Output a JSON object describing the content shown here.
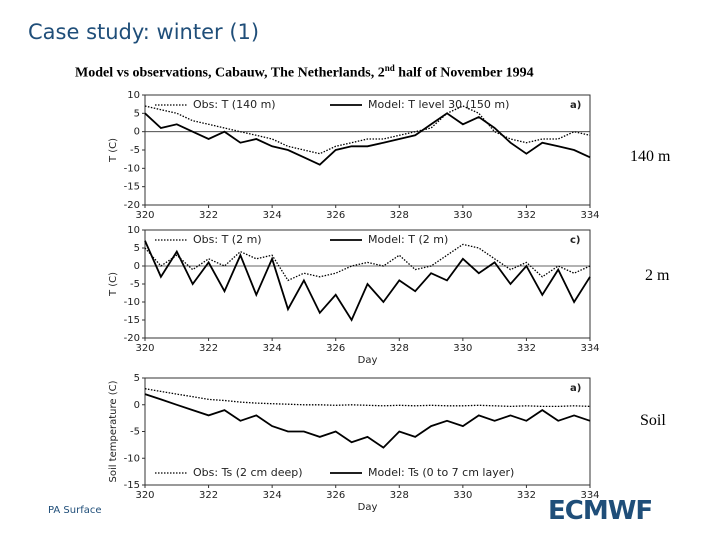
{
  "slide": {
    "title": "Case study: winter (1)",
    "subtitle_parts": [
      "Model vs observations, Cabauw, The Netherlands, 2",
      "nd",
      " half of November 1994"
    ],
    "level_labels": [
      "140 m",
      "2 m",
      "Soil"
    ],
    "footer": "PA Surface",
    "logo": "ECMWF"
  },
  "chart_data": [
    {
      "type": "line",
      "panel_label": "a)",
      "ylabel": "T (C)",
      "legend": "top",
      "zero_line": true,
      "xlim": [
        320,
        334
      ],
      "xticks": [
        320,
        322,
        324,
        326,
        328,
        330,
        332,
        334
      ],
      "ylim": [
        -20,
        10
      ],
      "yticks": [
        -20,
        -15,
        -10,
        -5,
        0,
        5,
        10
      ],
      "x": [
        320,
        320.5,
        321,
        321.5,
        322,
        322.5,
        323,
        323.5,
        324,
        324.5,
        325,
        325.5,
        326,
        326.5,
        327,
        327.5,
        328,
        328.5,
        329,
        329.5,
        330,
        330.5,
        331,
        331.5,
        332,
        332.5,
        333,
        333.5,
        334
      ],
      "series": [
        {
          "name": "Obs: T (140 m)",
          "color": "#000000",
          "linestyle": "dotted",
          "values": [
            7,
            6,
            5,
            3,
            2,
            1,
            0,
            -1,
            -2,
            -4,
            -5,
            -6,
            -4,
            -3,
            -2,
            -2,
            -1,
            0,
            1,
            5,
            7,
            5,
            0,
            -2,
            -3,
            -2,
            -2,
            0,
            -1
          ]
        },
        {
          "name": "Model: T level 30 (150 m)",
          "color": "#000000",
          "linestyle": "solid",
          "values": [
            5,
            1,
            2,
            0,
            -2,
            0,
            -3,
            -2,
            -4,
            -5,
            -7,
            -9,
            -5,
            -4,
            -4,
            -3,
            -2,
            -1,
            2,
            5,
            2,
            4,
            1,
            -3,
            -6,
            -3,
            -4,
            -5,
            -7
          ]
        }
      ]
    },
    {
      "type": "line",
      "panel_label": "c)",
      "ylabel": "T (C)",
      "xlabel": "Day",
      "legend": "top",
      "zero_line": true,
      "xlim": [
        320,
        334
      ],
      "xticks": [
        320,
        322,
        324,
        326,
        328,
        330,
        332,
        334
      ],
      "ylim": [
        -20,
        10
      ],
      "yticks": [
        -20,
        -15,
        -10,
        -5,
        0,
        5,
        10
      ],
      "x": [
        320,
        320.5,
        321,
        321.5,
        322,
        322.5,
        323,
        323.5,
        324,
        324.5,
        325,
        325.5,
        326,
        326.5,
        327,
        327.5,
        328,
        328.5,
        329,
        329.5,
        330,
        330.5,
        331,
        331.5,
        332,
        332.5,
        333,
        333.5,
        334
      ],
      "series": [
        {
          "name": "Obs: T (2 m)",
          "color": "#000000",
          "linestyle": "dotted",
          "values": [
            5,
            0,
            3,
            -1,
            2,
            0,
            4,
            2,
            3,
            -4,
            -2,
            -3,
            -2,
            0,
            1,
            0,
            3,
            -1,
            0,
            3,
            6,
            5,
            2,
            -1,
            1,
            -3,
            0,
            -2,
            0
          ]
        },
        {
          "name": "Model: T (2 m)",
          "color": "#000000",
          "linestyle": "solid",
          "values": [
            7,
            -3,
            4,
            -5,
            1,
            -7,
            3,
            -8,
            2,
            -12,
            -4,
            -13,
            -8,
            -15,
            -5,
            -10,
            -4,
            -7,
            -2,
            -4,
            2,
            -2,
            1,
            -5,
            0,
            -8,
            -1,
            -10,
            -3
          ]
        }
      ]
    },
    {
      "type": "line",
      "panel_label": "a)",
      "ylabel": "Soil temperature (C)",
      "xlabel": "Day",
      "legend": "bottom",
      "zero_line": false,
      "xlim": [
        320,
        334
      ],
      "xticks": [
        320,
        322,
        324,
        326,
        328,
        330,
        332,
        334
      ],
      "ylim": [
        -15,
        5
      ],
      "yticks": [
        -15,
        -10,
        -5,
        0,
        5
      ],
      "x": [
        320,
        320.5,
        321,
        321.5,
        322,
        322.5,
        323,
        323.5,
        324,
        324.5,
        325,
        325.5,
        326,
        326.5,
        327,
        327.5,
        328,
        328.5,
        329,
        329.5,
        330,
        330.5,
        331,
        331.5,
        332,
        332.5,
        333,
        333.5,
        334
      ],
      "series": [
        {
          "name": "Obs: Ts (2 cm deep)",
          "color": "#000000",
          "linestyle": "dotted",
          "values": [
            3,
            2.5,
            2,
            1.5,
            1,
            0.8,
            0.5,
            0.3,
            0.2,
            0.1,
            0,
            0,
            -0.1,
            0,
            -0.1,
            -0.2,
            -0.1,
            -0.2,
            -0.1,
            -0.2,
            -0.2,
            -0.1,
            -0.2,
            -0.3,
            -0.2,
            -0.3,
            -0.3,
            -0.2,
            -0.3
          ]
        },
        {
          "name": "Model: Ts (0 to 7 cm layer)",
          "color": "#000000",
          "linestyle": "solid",
          "values": [
            2,
            1,
            0,
            -1,
            -2,
            -1,
            -3,
            -2,
            -4,
            -5,
            -5,
            -6,
            -5,
            -7,
            -6,
            -8,
            -5,
            -6,
            -4,
            -3,
            -4,
            -2,
            -3,
            -2,
            -3,
            -1,
            -3,
            -2,
            -3
          ]
        }
      ]
    }
  ]
}
